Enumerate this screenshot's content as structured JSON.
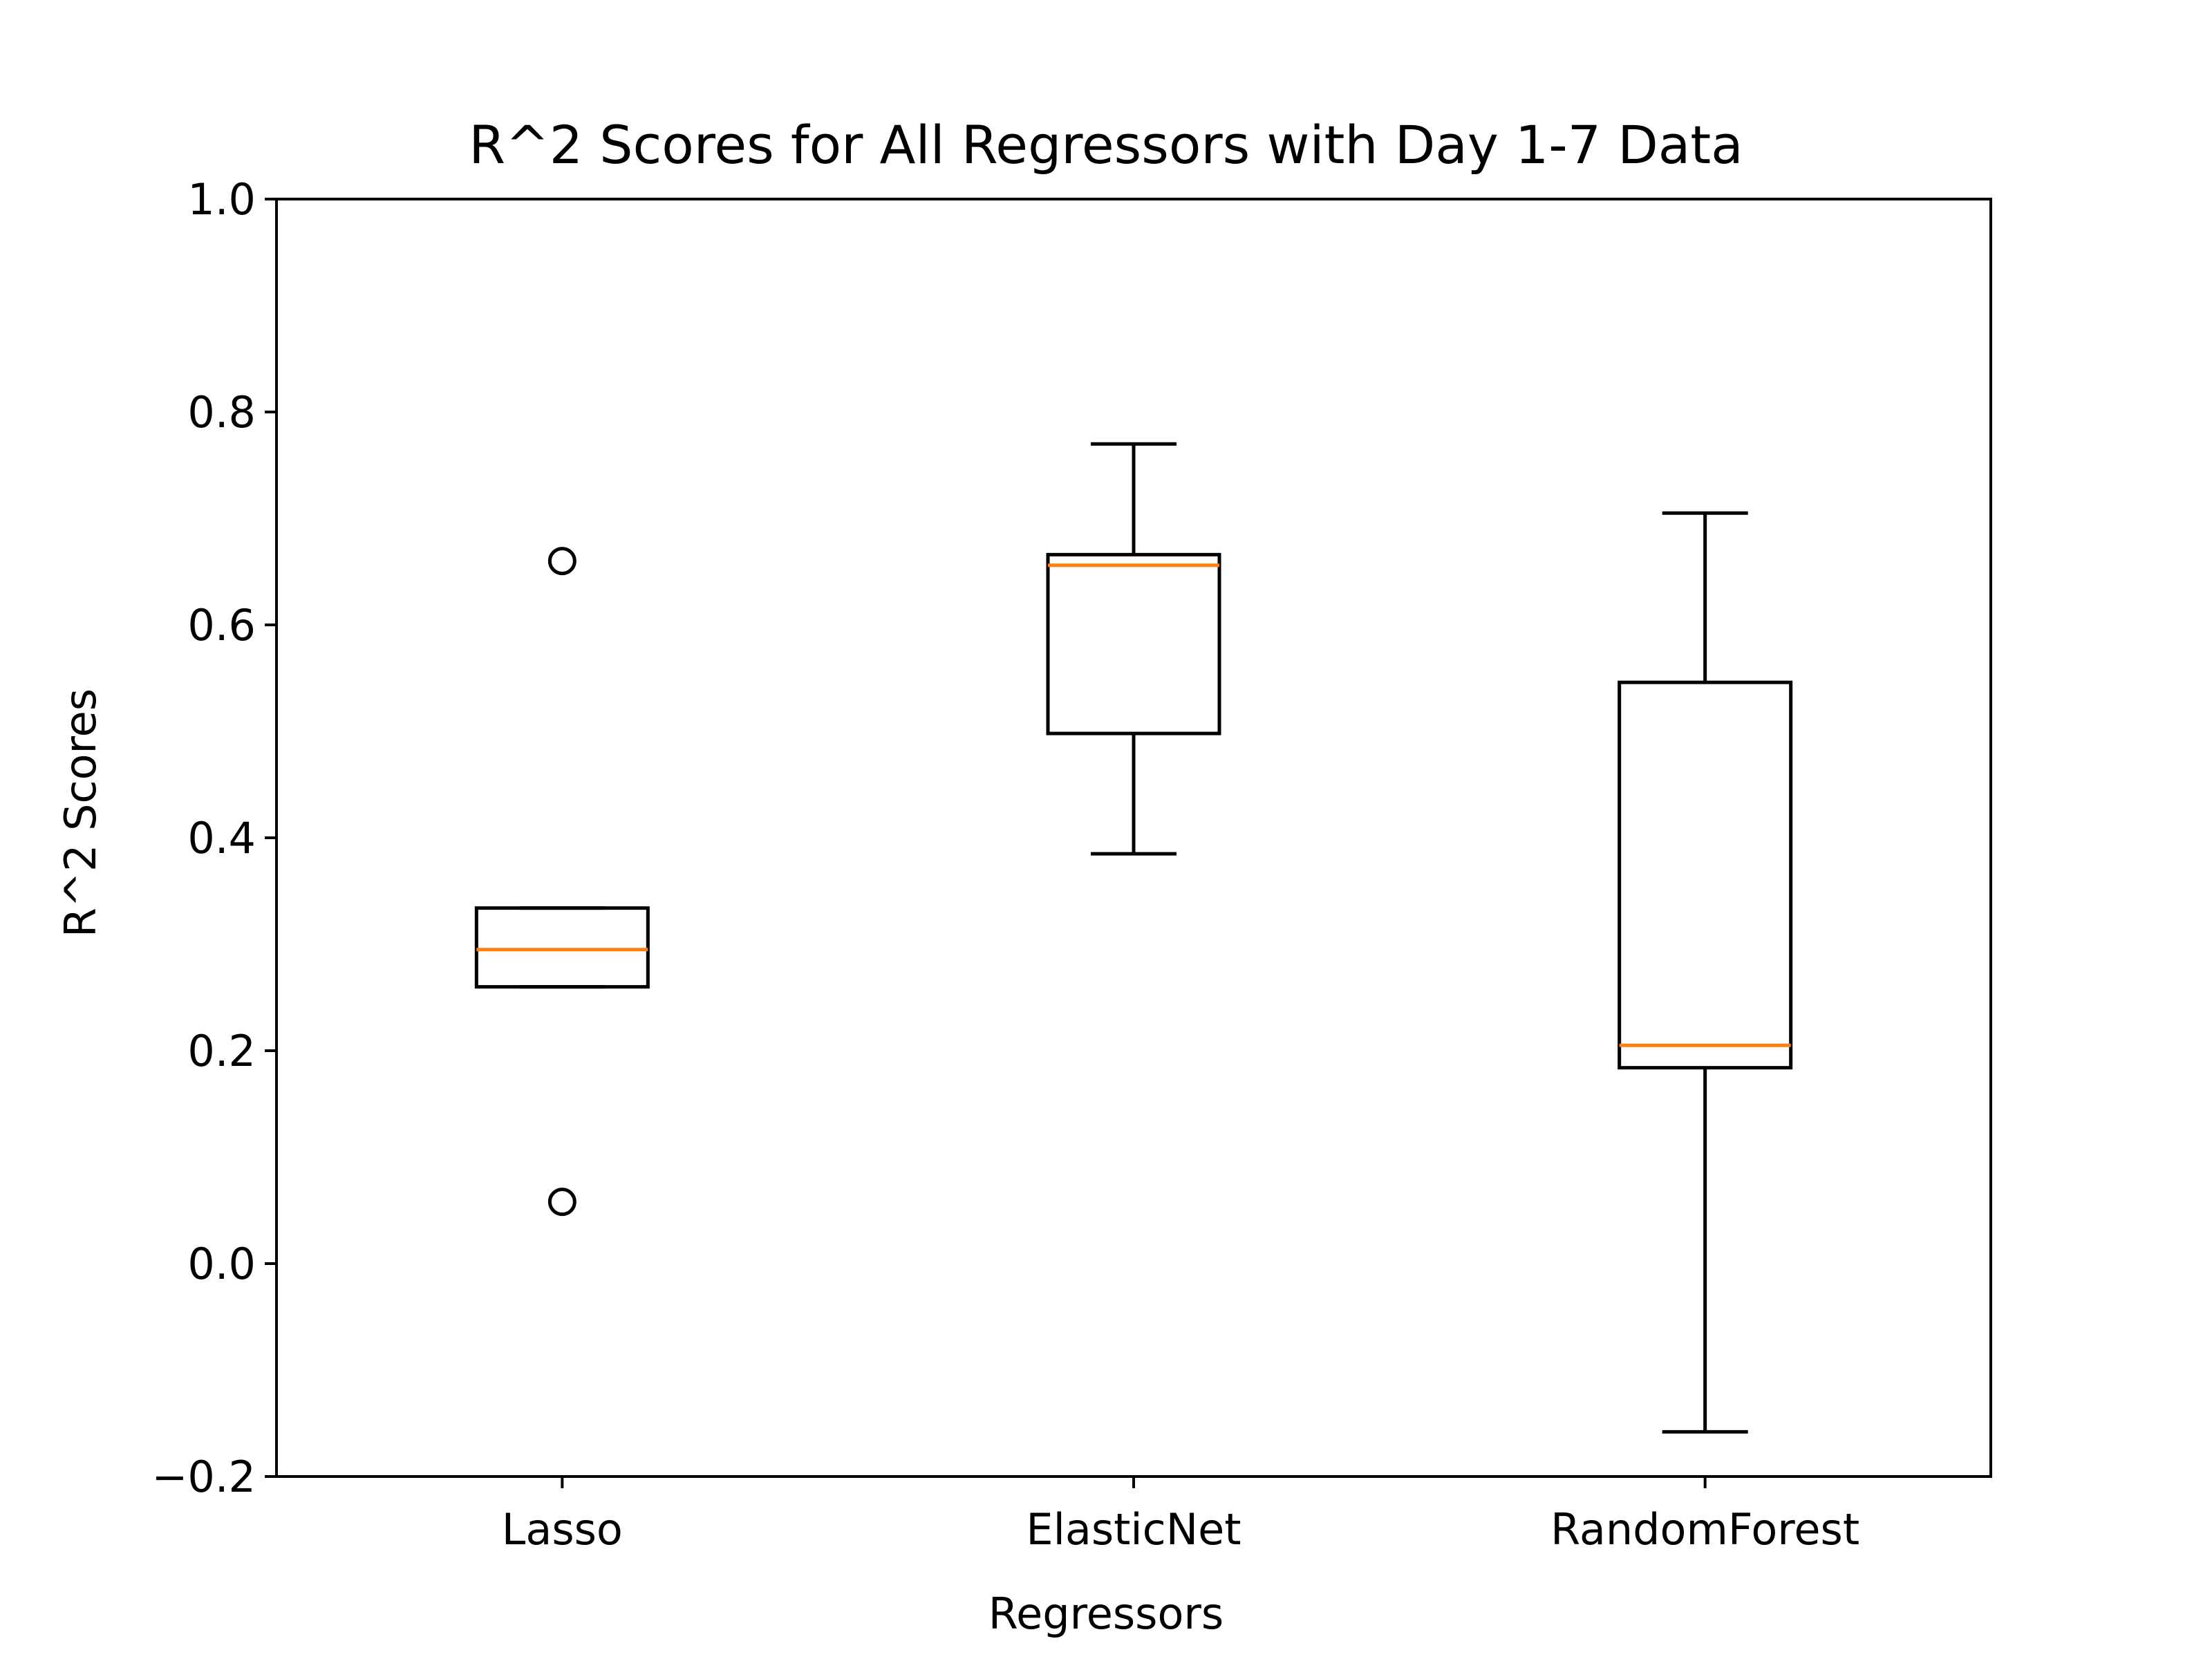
{
  "chart_data": {
    "type": "box",
    "title": "R^2 Scores for All Regressors with Day 1-7 Data",
    "xlabel": "Regressors",
    "ylabel": "R^2 Scores",
    "ylim": [
      -0.2,
      1.0
    ],
    "yticks": [
      -0.2,
      0.0,
      0.2,
      0.4,
      0.6,
      0.8,
      1.0
    ],
    "ytick_labels": [
      "−0.2",
      "0.0",
      "0.2",
      "0.4",
      "0.6",
      "0.8",
      "1.0"
    ],
    "grid": false,
    "categories": [
      "Lasso",
      "ElasticNet",
      "RandomForest"
    ],
    "boxes": [
      {
        "name": "Lasso",
        "whisker_low": 0.26,
        "q1": 0.26,
        "median": 0.295,
        "q3": 0.334,
        "whisker_high": 0.334,
        "outliers": [
          0.66,
          0.058
        ]
      },
      {
        "name": "ElasticNet",
        "whisker_low": 0.385,
        "q1": 0.498,
        "median": 0.656,
        "q3": 0.666,
        "whisker_high": 0.77,
        "outliers": []
      },
      {
        "name": "RandomForest",
        "whisker_low": -0.158,
        "q1": 0.184,
        "median": 0.205,
        "q3": 0.546,
        "whisker_high": 0.705,
        "outliers": []
      }
    ],
    "colors": {
      "box": "#000000",
      "median": "#ff7f0e",
      "background": "#ffffff"
    }
  }
}
